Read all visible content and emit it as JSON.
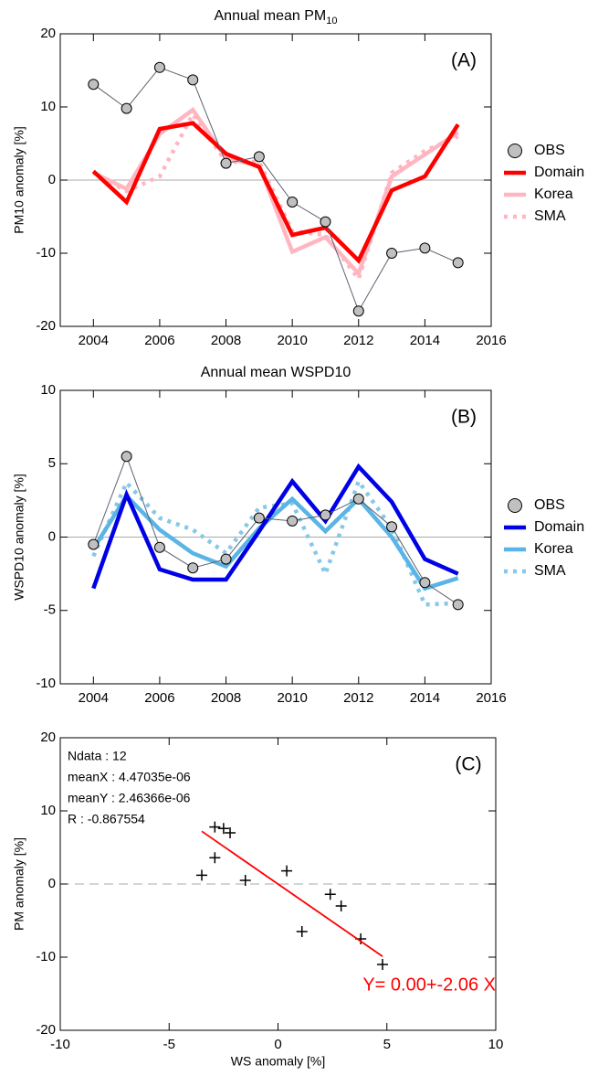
{
  "chart_data": [
    {
      "type": "line",
      "panel_label": "(A)",
      "title": "Annual mean PM",
      "title_subscript": "10",
      "ylabel": "PM10 anomaly [%]",
      "x": [
        2004,
        2005,
        2006,
        2007,
        2008,
        2009,
        2010,
        2011,
        2012,
        2013,
        2014,
        2015
      ],
      "xlim": [
        2003,
        2016
      ],
      "xticks": [
        2004,
        2006,
        2008,
        2010,
        2012,
        2014,
        2016
      ],
      "ylim": [
        -20,
        20
      ],
      "yticks": [
        -20,
        -10,
        0,
        10,
        20
      ],
      "hline": 0,
      "series": [
        {
          "name": "OBS",
          "color": "#c0c0c0",
          "line_color": "#5a6270",
          "style": "marker-line",
          "values": [
            13.1,
            9.8,
            15.4,
            13.7,
            2.3,
            3.2,
            -3.0,
            -5.7,
            -17.9,
            -10.0,
            -9.3,
            -11.3
          ]
        },
        {
          "name": "Domain",
          "color": "#ff0000",
          "style": "solid",
          "values": [
            1.2,
            -3.0,
            7.0,
            7.8,
            3.6,
            1.8,
            -7.5,
            -6.5,
            -11.0,
            -1.4,
            0.5,
            7.6
          ]
        },
        {
          "name": "Korea",
          "color": "#ffb6c1",
          "style": "solid",
          "values": [
            1.0,
            -1.2,
            6.3,
            9.6,
            3.0,
            2.0,
            -9.8,
            -7.8,
            -12.8,
            0.5,
            3.5,
            6.5
          ]
        },
        {
          "name": "SMA",
          "color": "#ffb6c1",
          "style": "dotted",
          "values": [
            1.0,
            -1.5,
            0.5,
            9.0,
            2.5,
            2.5,
            -7.0,
            -7.5,
            -13.5,
            1.0,
            4.0,
            6.0
          ]
        }
      ]
    },
    {
      "type": "line",
      "panel_label": "(B)",
      "title": "Annual mean WSPD10",
      "ylabel": "WSPD10 anomaly [%]",
      "x": [
        2004,
        2005,
        2006,
        2007,
        2008,
        2009,
        2010,
        2011,
        2012,
        2013,
        2014,
        2015
      ],
      "xlim": [
        2003,
        2016
      ],
      "xticks": [
        2004,
        2006,
        2008,
        2010,
        2012,
        2014,
        2016
      ],
      "ylim": [
        -10,
        10
      ],
      "yticks": [
        -10,
        -5,
        0,
        5,
        10
      ],
      "hline": 0,
      "series": [
        {
          "name": "OBS",
          "color": "#c0c0c0",
          "line_color": "#5a6270",
          "style": "marker-line",
          "values": [
            -0.5,
            5.5,
            -0.7,
            -2.1,
            -1.5,
            1.3,
            1.1,
            1.5,
            2.6,
            0.7,
            -3.1,
            -4.6
          ]
        },
        {
          "name": "Domain",
          "color": "#0000e6",
          "style": "solid",
          "values": [
            -3.5,
            2.9,
            -2.2,
            -2.9,
            -2.9,
            0.4,
            3.8,
            1.1,
            4.8,
            2.4,
            -1.5,
            -2.5
          ]
        },
        {
          "name": "Korea",
          "color": "#5ab4e5",
          "style": "solid",
          "values": [
            -0.8,
            2.8,
            0.5,
            -1.1,
            -2.0,
            0.6,
            2.6,
            0.4,
            2.6,
            0.0,
            -3.5,
            -2.8
          ]
        },
        {
          "name": "SMA",
          "color": "#87c7e8",
          "style": "dotted",
          "values": [
            -1.3,
            3.7,
            1.3,
            0.5,
            -1.1,
            2.0,
            2.3,
            -2.5,
            3.8,
            0.6,
            -4.6,
            -4.5
          ]
        }
      ]
    },
    {
      "type": "scatter",
      "panel_label": "(C)",
      "xlabel": "WS anomaly [%]",
      "ylabel": "PM anomaly [%]",
      "annotations": [
        "Ndata : 12",
        "meanX : 4.47035e-06",
        "meanY : 2.46366e-06",
        "R : -0.867554"
      ],
      "x": [
        -3.5,
        2.9,
        -2.2,
        -2.9,
        -2.9,
        0.4,
        3.8,
        1.1,
        4.8,
        2.4,
        -1.5,
        -2.5
      ],
      "y": [
        1.2,
        -3.0,
        7.0,
        7.8,
        3.6,
        1.8,
        -7.5,
        -6.5,
        -11.0,
        -1.4,
        0.5,
        7.6
      ],
      "xlim": [
        -10,
        10
      ],
      "xticks": [
        -10,
        -5,
        0,
        5,
        10
      ],
      "ylim": [
        -20,
        20
      ],
      "yticks": [
        -20,
        -10,
        0,
        10,
        20
      ],
      "hline": 0,
      "color": "#000000",
      "fit": {
        "intercept": 0.0,
        "slope": -2.06,
        "color": "#ff0000",
        "label": "Y= 0.00+-2.06 X"
      }
    }
  ]
}
